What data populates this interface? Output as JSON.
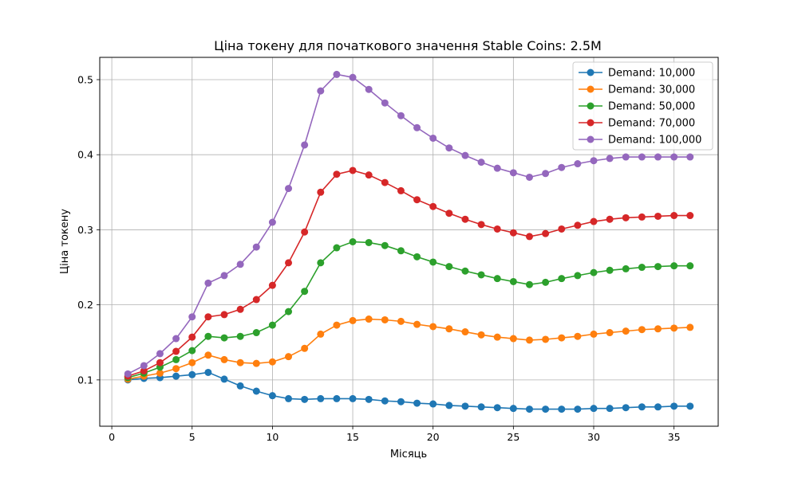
{
  "chart_data": {
    "type": "line",
    "title": "Ціна токену для початкового значення Stable Coins: 2.5M",
    "xlabel": "Місяць",
    "ylabel": "Ціна токену",
    "xlim": [
      -0.75,
      37.75
    ],
    "ylim": [
      0.0383,
      0.5297
    ],
    "xticks": [
      0,
      5,
      10,
      15,
      20,
      25,
      30,
      35
    ],
    "yticks": [
      0.1,
      0.2,
      0.3,
      0.4,
      0.5
    ],
    "ytick_labels": [
      "0.1",
      "0.2",
      "0.3",
      "0.4",
      "0.5"
    ],
    "grid": true,
    "legend_position": "top-right",
    "x": [
      1,
      2,
      3,
      4,
      5,
      6,
      7,
      8,
      9,
      10,
      11,
      12,
      13,
      14,
      15,
      16,
      17,
      18,
      19,
      20,
      21,
      22,
      23,
      24,
      25,
      26,
      27,
      28,
      29,
      30,
      31,
      32,
      33,
      34,
      35,
      36
    ],
    "series": [
      {
        "name": "Demand: 10,000",
        "color": "#1f77b4",
        "values": [
          0.1,
          0.102,
          0.103,
          0.105,
          0.107,
          0.11,
          0.101,
          0.092,
          0.085,
          0.079,
          0.075,
          0.074,
          0.075,
          0.075,
          0.075,
          0.074,
          0.072,
          0.071,
          0.069,
          0.068,
          0.066,
          0.065,
          0.064,
          0.063,
          0.062,
          0.061,
          0.061,
          0.061,
          0.061,
          0.062,
          0.062,
          0.063,
          0.064,
          0.064,
          0.065,
          0.065
        ]
      },
      {
        "name": "Demand: 30,000",
        "color": "#ff7f0e",
        "values": [
          0.101,
          0.105,
          0.109,
          0.115,
          0.123,
          0.133,
          0.127,
          0.123,
          0.122,
          0.124,
          0.131,
          0.142,
          0.161,
          0.173,
          0.179,
          0.181,
          0.18,
          0.178,
          0.174,
          0.171,
          0.168,
          0.164,
          0.16,
          0.157,
          0.155,
          0.153,
          0.154,
          0.156,
          0.158,
          0.161,
          0.163,
          0.165,
          0.167,
          0.168,
          0.169,
          0.17
        ]
      },
      {
        "name": "Demand: 50,000",
        "color": "#2ca02c",
        "values": [
          0.103,
          0.109,
          0.117,
          0.127,
          0.139,
          0.158,
          0.156,
          0.158,
          0.163,
          0.173,
          0.191,
          0.218,
          0.256,
          0.276,
          0.284,
          0.283,
          0.279,
          0.272,
          0.264,
          0.257,
          0.251,
          0.245,
          0.24,
          0.235,
          0.231,
          0.227,
          0.23,
          0.235,
          0.239,
          0.243,
          0.246,
          0.248,
          0.25,
          0.251,
          0.252,
          0.252
        ]
      },
      {
        "name": "Demand: 70,000",
        "color": "#d62728",
        "values": [
          0.105,
          0.112,
          0.123,
          0.138,
          0.157,
          0.184,
          0.187,
          0.194,
          0.207,
          0.226,
          0.256,
          0.297,
          0.35,
          0.374,
          0.379,
          0.373,
          0.363,
          0.352,
          0.34,
          0.331,
          0.322,
          0.314,
          0.307,
          0.301,
          0.296,
          0.291,
          0.295,
          0.301,
          0.306,
          0.311,
          0.314,
          0.316,
          0.317,
          0.318,
          0.319,
          0.319
        ]
      },
      {
        "name": "Demand: 100,000",
        "color": "#9467bd",
        "values": [
          0.108,
          0.119,
          0.135,
          0.155,
          0.184,
          0.229,
          0.239,
          0.254,
          0.277,
          0.31,
          0.355,
          0.413,
          0.485,
          0.507,
          0.503,
          0.487,
          0.469,
          0.452,
          0.436,
          0.422,
          0.409,
          0.399,
          0.39,
          0.382,
          0.376,
          0.37,
          0.375,
          0.383,
          0.388,
          0.392,
          0.395,
          0.397,
          0.397,
          0.397,
          0.397,
          0.397
        ]
      }
    ]
  }
}
